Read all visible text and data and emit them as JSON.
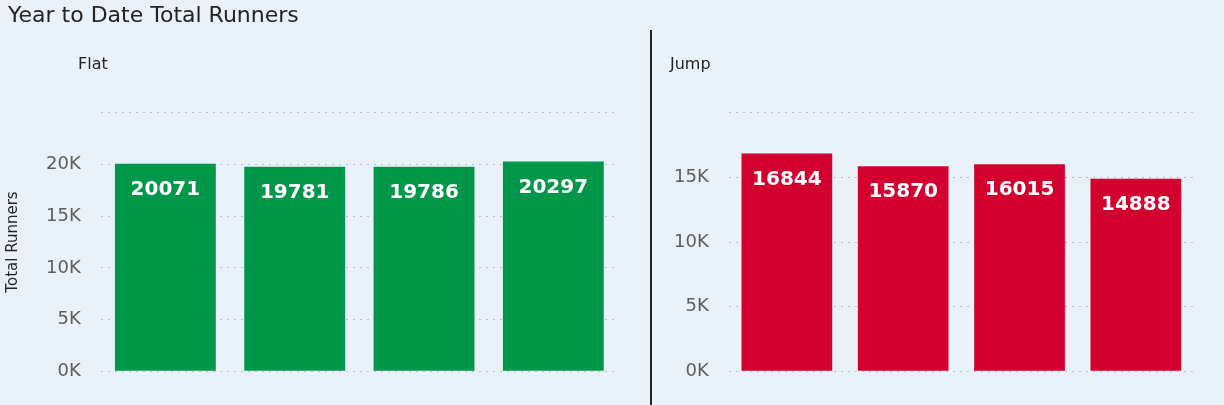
{
  "chart_data": [
    {
      "type": "bar",
      "title": "Year to Date Total Runners",
      "subtitle": "Flat",
      "ylabel": "Total Runners",
      "categories": [
        null,
        null,
        null,
        null
      ],
      "series": [
        {
          "color": "#00974a",
          "values": [
            20071,
            19781,
            19786,
            20297
          ]
        }
      ],
      "yticks": [
        {
          "value": 0,
          "label": "0K"
        },
        {
          "value": 5000,
          "label": "5K"
        },
        {
          "value": 10000,
          "label": "10K"
        },
        {
          "value": 15000,
          "label": "15K"
        },
        {
          "value": 20000,
          "label": "20K"
        },
        {
          "value": 25000,
          "label": null
        }
      ],
      "ylim": [
        0,
        25000
      ],
      "grid": "y",
      "tick_labels": "y",
      "data_labels": true,
      "legend": false
    },
    {
      "type": "bar",
      "subtitle": "Jump",
      "categories": [
        null,
        null,
        null,
        null
      ],
      "series": [
        {
          "color": "#d3002f",
          "values": [
            16844,
            15870,
            16015,
            14888
          ]
        }
      ],
      "yticks": [
        {
          "value": 0,
          "label": "0K"
        },
        {
          "value": 5000,
          "label": "5K"
        },
        {
          "value": 10000,
          "label": "10K"
        },
        {
          "value": 15000,
          "label": "15K"
        },
        {
          "value": 20000,
          "label": null
        }
      ],
      "ylim": [
        0,
        20000
      ],
      "grid": "y",
      "tick_labels": "y",
      "data_labels": true,
      "legend": false
    }
  ]
}
